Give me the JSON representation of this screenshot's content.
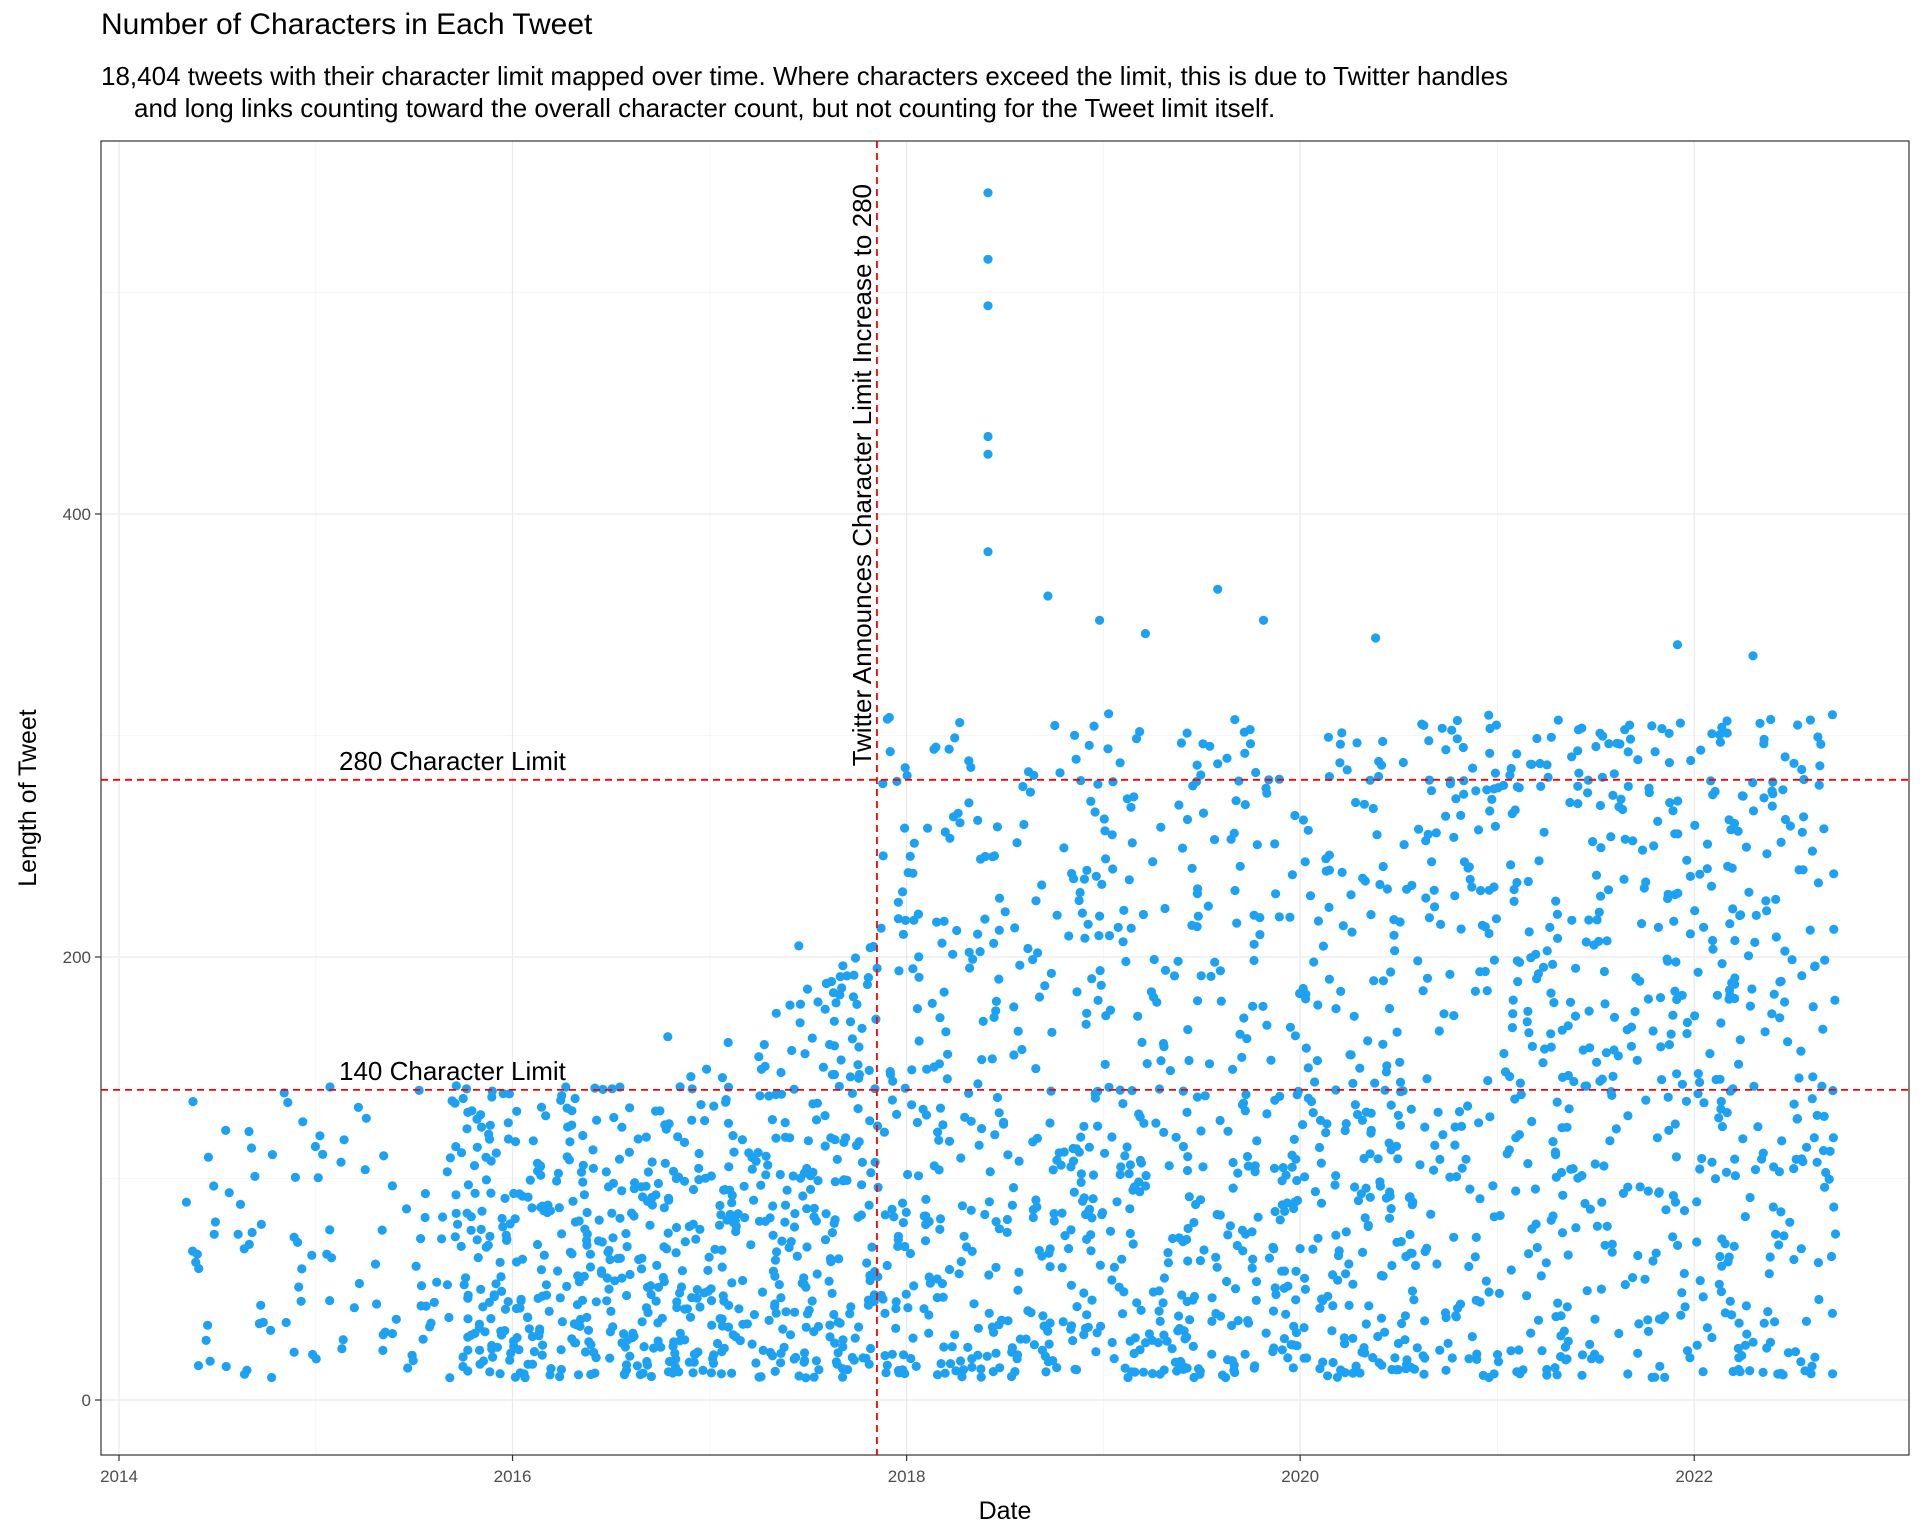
{
  "chart_data": {
    "type": "scatter",
    "title": "Number of Characters in Each Tweet",
    "subtitle_line1": "18,404 tweets with their character limit mapped over time. Where characters exceed the limit, this is due to Twitter handles",
    "subtitle_line2": "and long links counting toward the overall character count, but not counting for the Tweet limit itself.",
    "xlabel": "Date",
    "ylabel": "Length of Tweet",
    "x_ticks": [
      "2014",
      "2016",
      "2018",
      "2020",
      "2022"
    ],
    "y_ticks": [
      0,
      200,
      400
    ],
    "xlim": [
      "2014-01-01",
      "2023-01-01"
    ],
    "ylim": [
      0,
      580
    ],
    "grid": true,
    "point_color": "#1DA1F2",
    "reference_color": "#FF0000",
    "reference_lines": [
      {
        "axis": "y",
        "value": 140,
        "label": "140 Character Limit"
      },
      {
        "axis": "y",
        "value": 280,
        "label": "280 Character Limit"
      },
      {
        "axis": "x",
        "value": "2017-11-07",
        "label": "Twitter Announces Character Limit Increase to 280"
      }
    ],
    "n_tweets": 18404,
    "notable_points": [
      {
        "x": "2018-06-01",
        "y": 545
      },
      {
        "x": "2018-06-01",
        "y": 515
      },
      {
        "x": "2018-06-01",
        "y": 494
      },
      {
        "x": "2018-06-01",
        "y": 435
      },
      {
        "x": "2018-06-01",
        "y": 427
      },
      {
        "x": "2018-06-01",
        "y": 383
      },
      {
        "x": "2019-08-01",
        "y": 366
      },
      {
        "x": "2018-09-20",
        "y": 363
      },
      {
        "x": "2019-10-25",
        "y": 352
      },
      {
        "x": "2018-12-25",
        "y": 352
      },
      {
        "x": "2019-03-20",
        "y": 346
      },
      {
        "x": "2020-05-20",
        "y": 344
      },
      {
        "x": "2021-12-01",
        "y": 341
      },
      {
        "x": "2022-04-20",
        "y": 336
      },
      {
        "x": "2017-06-15",
        "y": 205
      },
      {
        "x": "2016-10-15",
        "y": 164
      }
    ]
  }
}
